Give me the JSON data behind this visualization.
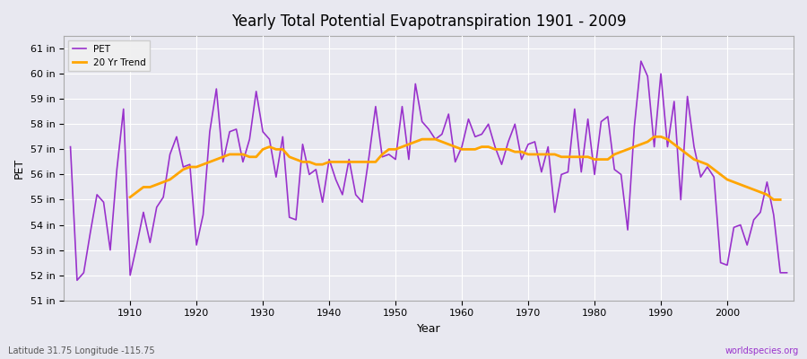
{
  "title": "Yearly Total Potential Evapotranspiration 1901 - 2009",
  "xlabel": "Year",
  "ylabel": "PET",
  "footer_left": "Latitude 31.75 Longitude -115.75",
  "footer_right": "worldspecies.org",
  "pet_color": "#9932CC",
  "trend_color": "#FFA500",
  "background_color": "#E8E8F0",
  "grid_color": "#ffffff",
  "ylim": [
    51,
    61.5
  ],
  "ytick_labels": [
    "51 in",
    "52 in",
    "53 in",
    "54 in",
    "55 in",
    "56 in",
    "57 in",
    "58 in",
    "59 in",
    "60 in",
    "61 in"
  ],
  "ytick_values": [
    51,
    52,
    53,
    54,
    55,
    56,
    57,
    58,
    59,
    60,
    61
  ],
  "pet_values": [
    57.1,
    51.8,
    52.1,
    53.7,
    55.2,
    54.9,
    53.0,
    56.2,
    58.6,
    52.0,
    53.2,
    54.5,
    53.3,
    54.7,
    55.1,
    56.8,
    57.5,
    56.3,
    56.4,
    53.2,
    54.4,
    57.7,
    59.4,
    56.5,
    57.7,
    57.8,
    56.5,
    57.4,
    59.3,
    57.7,
    57.4,
    55.9,
    57.5,
    54.3,
    54.2,
    57.2,
    56.0,
    56.2,
    54.9,
    56.6,
    55.8,
    55.2,
    56.6,
    55.2,
    54.9,
    56.7,
    58.7,
    56.7,
    56.8,
    56.6,
    58.7,
    56.6,
    59.6,
    58.1,
    57.8,
    57.4,
    57.6,
    58.4,
    56.5,
    57.1,
    58.2,
    57.5,
    57.6,
    58.0,
    57.1,
    56.4,
    57.3,
    58.0,
    56.6,
    57.2,
    57.3,
    56.1,
    57.1,
    54.5,
    56.0,
    56.1,
    58.6,
    56.1,
    58.2,
    56.0,
    58.1,
    58.3,
    56.2,
    56.0,
    53.8,
    57.9,
    60.5,
    59.9,
    57.1,
    60.0,
    57.1,
    58.9,
    55.0,
    59.1,
    57.1,
    55.9,
    56.3,
    55.9,
    52.5,
    52.4,
    53.9,
    54.0,
    53.2,
    54.2,
    54.5,
    55.7,
    54.4,
    52.1,
    52.1
  ],
  "trend_values": [
    55.1,
    55.3,
    55.5,
    55.5,
    55.6,
    55.7,
    55.8,
    56.0,
    56.2,
    56.3,
    56.3,
    56.4,
    56.5,
    56.6,
    56.7,
    56.8,
    56.8,
    56.8,
    56.7,
    56.7,
    57.0,
    57.1,
    57.0,
    57.0,
    56.7,
    56.6,
    56.5,
    56.5,
    56.4,
    56.4,
    56.5,
    56.5,
    56.5,
    56.5,
    56.5,
    56.5,
    56.5,
    56.5,
    56.8,
    57.0,
    57.0,
    57.1,
    57.2,
    57.3,
    57.4,
    57.4,
    57.4,
    57.3,
    57.2,
    57.1,
    57.0,
    57.0,
    57.0,
    57.1,
    57.1,
    57.0,
    57.0,
    57.0,
    56.9,
    56.9,
    56.8,
    56.8,
    56.8,
    56.8,
    56.8,
    56.7,
    56.7,
    56.7,
    56.7,
    56.7,
    56.6,
    56.6,
    56.6,
    56.8,
    56.9,
    57.0,
    57.1,
    57.2,
    57.3,
    57.5,
    57.5,
    57.4,
    57.2,
    57.0,
    56.8,
    56.6,
    56.5,
    56.4,
    56.2,
    56.0,
    55.8,
    55.7,
    55.6,
    55.5,
    55.4,
    55.3,
    55.2,
    55.0,
    55.0
  ]
}
